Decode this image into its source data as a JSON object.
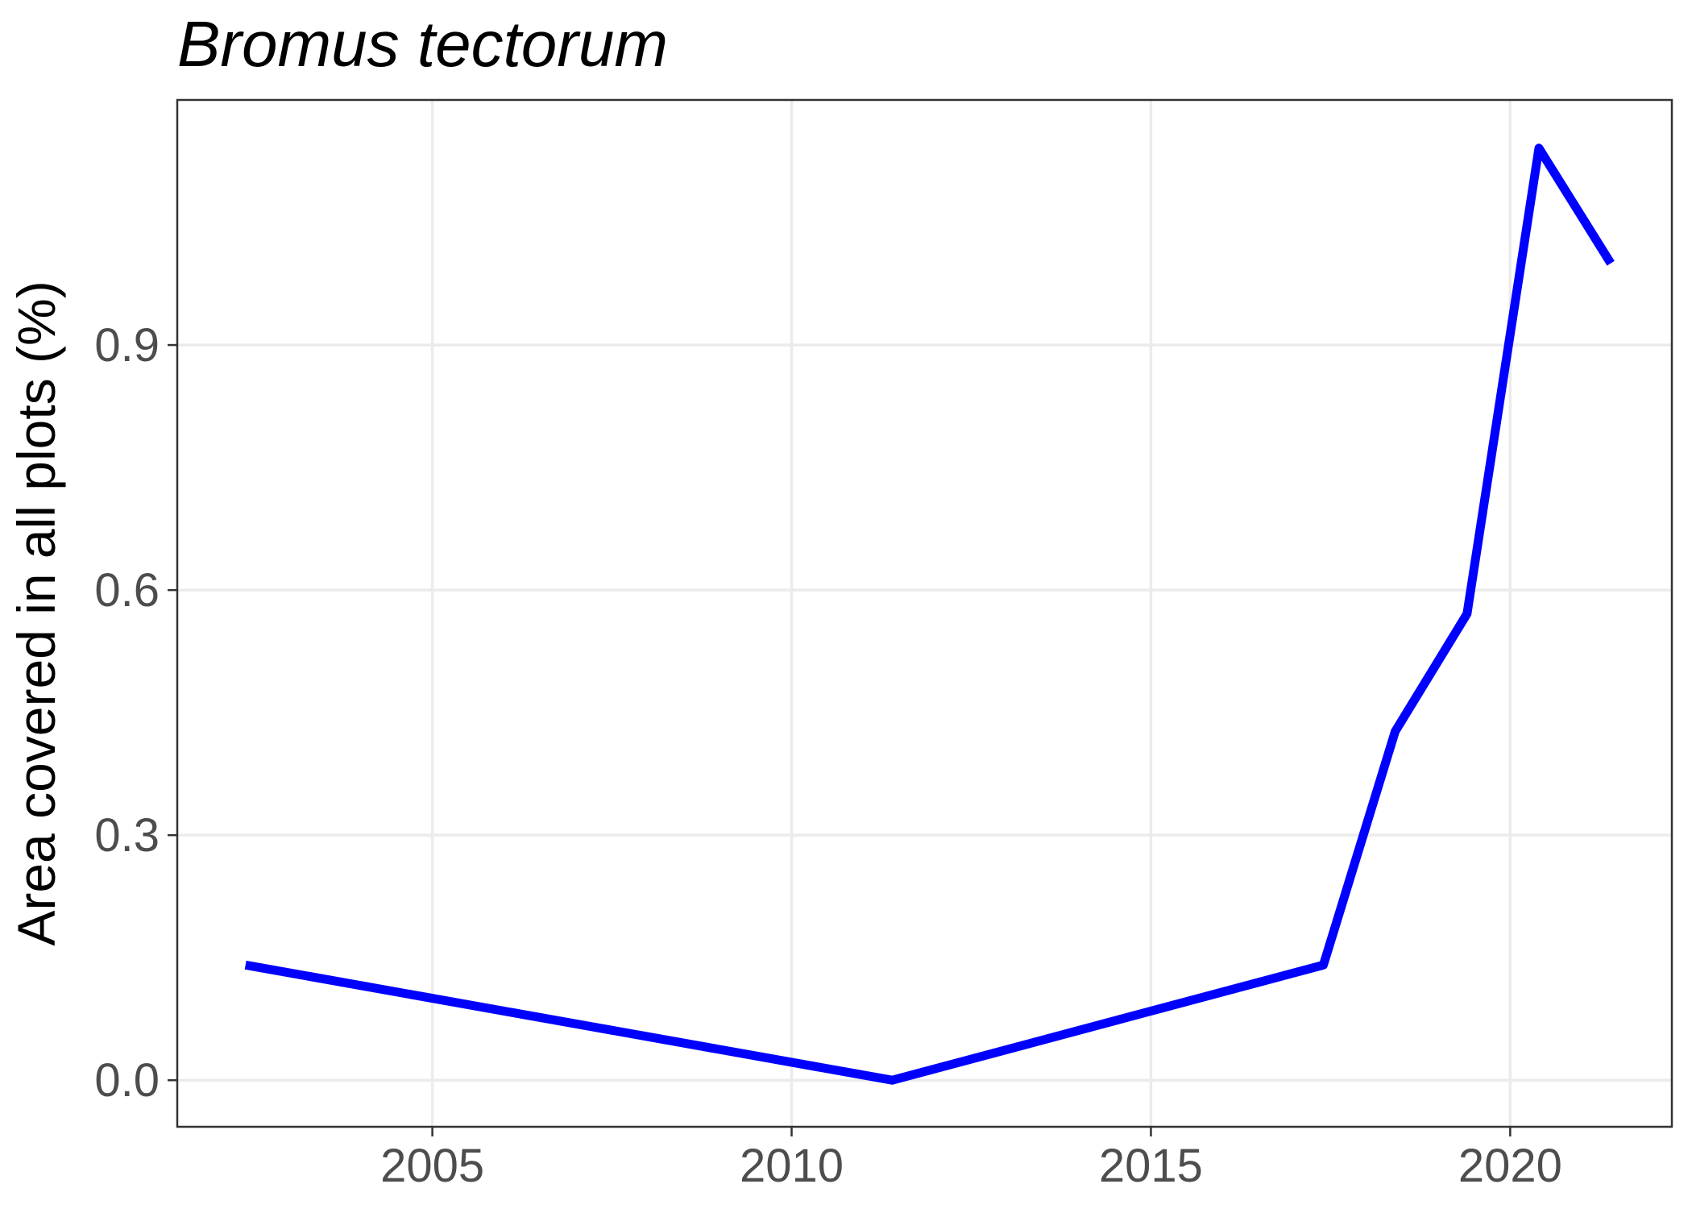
{
  "chart_data": {
    "type": "line",
    "title": "Bromus tectorum",
    "xlabel": "",
    "ylabel": "Area covered in all plots (%)",
    "xlim": [
      2001.45,
      2022.25
    ],
    "ylim": [
      -0.057,
      1.2
    ],
    "x_ticks": [
      2005,
      2010,
      2015,
      2020
    ],
    "y_ticks": [
      0.0,
      0.3,
      0.6,
      0.9
    ],
    "x_tick_labels": [
      "2005",
      "2010",
      "2015",
      "2020"
    ],
    "y_tick_labels": [
      "0.0",
      "0.3",
      "0.6",
      "0.9"
    ],
    "grid": true,
    "series": [
      {
        "color": "#0000ff",
        "x": [
          2002.4,
          2011.4,
          2017.4,
          2018.4,
          2019.4,
          2020.4,
          2021.4
        ],
        "y": [
          0.141,
          0.0,
          0.141,
          0.427,
          0.571,
          1.141,
          1.0
        ]
      }
    ]
  }
}
